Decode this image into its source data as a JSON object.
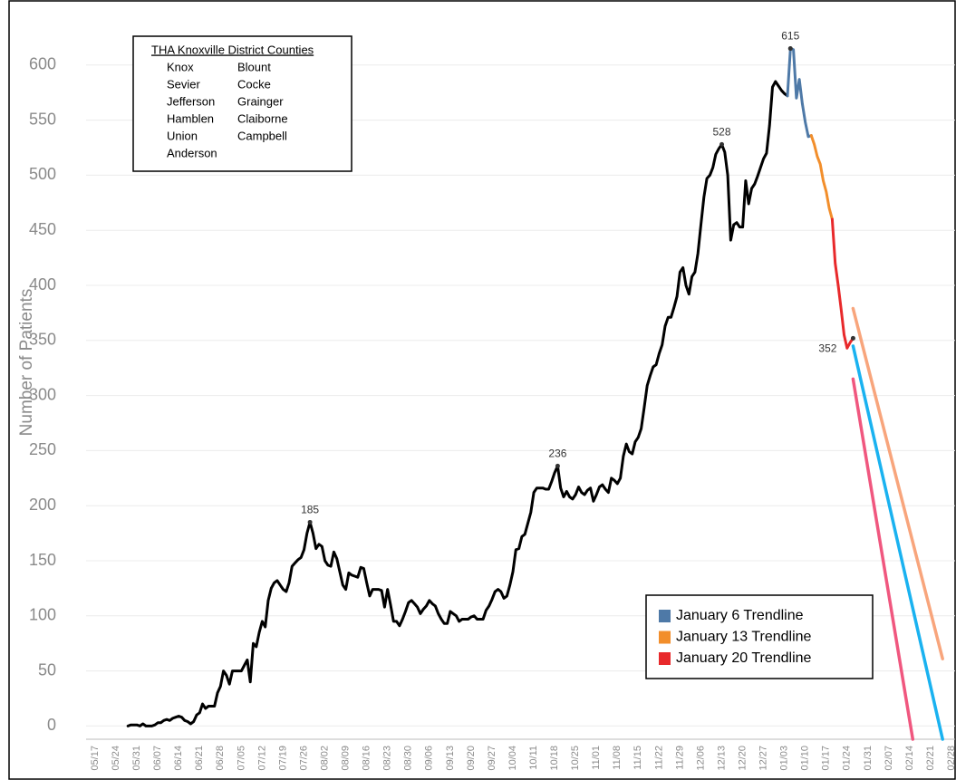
{
  "chart_data": {
    "type": "line",
    "y_label": "Number of Patients",
    "categories": [
      "05/17",
      "05/18",
      "05/19",
      "05/20",
      "05/21",
      "05/22",
      "05/23",
      "05/24",
      "05/25",
      "05/26",
      "05/27",
      "05/28",
      "05/29",
      "05/30",
      "05/31",
      "06/01",
      "06/02",
      "06/03",
      "06/04",
      "06/05",
      "06/06",
      "06/07",
      "06/08",
      "06/09",
      "06/10",
      "06/11",
      "06/12",
      "06/13",
      "06/14",
      "06/15",
      "06/16",
      "06/17",
      "06/18",
      "06/19",
      "06/20",
      "06/21",
      "06/22",
      "06/23",
      "06/24",
      "06/25",
      "06/26",
      "06/27",
      "06/28",
      "06/29",
      "06/30",
      "07/01",
      "07/02",
      "07/03",
      "07/04",
      "07/05",
      "07/06",
      "07/07",
      "07/08",
      "07/09",
      "07/10",
      "07/11",
      "07/12",
      "07/13",
      "07/14",
      "07/15",
      "07/16",
      "07/17",
      "07/18",
      "07/19",
      "07/20",
      "07/21",
      "07/22",
      "07/23",
      "07/24",
      "07/25",
      "07/26",
      "07/27",
      "07/28",
      "07/29",
      "07/30",
      "07/31",
      "08/01",
      "08/02",
      "08/03",
      "08/04",
      "08/05",
      "08/06",
      "08/07",
      "08/08",
      "08/09",
      "08/10",
      "08/11",
      "08/12",
      "08/13",
      "08/14",
      "08/15",
      "08/16",
      "08/17",
      "08/18",
      "08/19",
      "08/20",
      "08/21",
      "08/22",
      "08/23",
      "08/24",
      "08/25",
      "08/26",
      "08/27",
      "08/28",
      "08/29",
      "08/30",
      "08/31",
      "09/01",
      "09/02",
      "09/03",
      "09/04",
      "09/05",
      "09/06",
      "09/07",
      "09/08",
      "09/09",
      "09/10",
      "09/11",
      "09/12",
      "09/13",
      "09/14",
      "09/15",
      "09/16",
      "09/17",
      "09/18",
      "09/19",
      "09/20",
      "09/21",
      "09/22",
      "09/23",
      "09/24",
      "09/25",
      "09/26",
      "09/27",
      "09/28",
      "09/29",
      "09/30",
      "10/01",
      "10/02",
      "10/03",
      "10/04",
      "10/05",
      "10/06",
      "10/07",
      "10/08",
      "10/09",
      "10/10",
      "10/11",
      "10/12",
      "10/13",
      "10/14",
      "10/15",
      "10/16",
      "10/17",
      "10/18",
      "10/19",
      "10/20",
      "10/21",
      "10/22",
      "10/23",
      "10/24",
      "10/25",
      "10/26",
      "10/27",
      "10/28",
      "10/29",
      "10/30",
      "10/31",
      "11/01",
      "11/02",
      "11/03",
      "11/04",
      "11/05",
      "11/06",
      "11/07",
      "11/08",
      "11/09",
      "11/10",
      "11/11",
      "11/12",
      "11/13",
      "11/14",
      "11/15",
      "11/16",
      "11/17",
      "11/18",
      "11/19",
      "11/20",
      "11/21",
      "11/22",
      "11/23",
      "11/24",
      "11/25",
      "11/26",
      "11/27",
      "11/28",
      "11/29",
      "11/30",
      "12/01",
      "12/02",
      "12/03",
      "12/04",
      "12/05",
      "12/06",
      "12/07",
      "12/08",
      "12/09",
      "12/10",
      "12/11",
      "12/12",
      "12/13",
      "12/14",
      "12/15",
      "12/16",
      "12/17",
      "12/18",
      "12/19",
      "12/20",
      "12/21",
      "12/22",
      "12/23",
      "12/24",
      "12/25",
      "12/26",
      "12/27",
      "12/28",
      "12/29",
      "12/30",
      "12/31",
      "01/01",
      "01/02",
      "01/03",
      "01/04",
      "01/05",
      "01/06",
      "01/07",
      "01/08",
      "01/09",
      "01/10",
      "01/11",
      "01/12",
      "01/13",
      "01/14",
      "01/15",
      "01/16",
      "01/17",
      "01/18",
      "01/19",
      "01/20",
      "01/21",
      "01/22",
      "01/23",
      "01/24",
      "01/25",
      "01/26",
      "01/27",
      "01/28",
      "01/29",
      "01/30",
      "01/31",
      "02/01",
      "02/02",
      "02/03",
      "02/04",
      "02/05",
      "02/06",
      "02/07",
      "02/08",
      "02/09",
      "02/10",
      "02/11",
      "02/12",
      "02/13",
      "02/14",
      "02/15",
      "02/16",
      "02/17",
      "02/18",
      "02/19",
      "02/20",
      "02/21",
      "02/22",
      "02/23",
      "02/24",
      "02/25",
      "02/26",
      "02/27",
      "02/28"
    ],
    "xticks": [
      "05/17",
      "05/24",
      "05/31",
      "06/07",
      "06/14",
      "06/21",
      "06/28",
      "07/05",
      "07/12",
      "07/19",
      "07/26",
      "08/02",
      "08/09",
      "08/16",
      "08/23",
      "08/30",
      "09/06",
      "09/13",
      "09/20",
      "09/27",
      "10/04",
      "10/11",
      "10/18",
      "10/25",
      "11/01",
      "11/08",
      "11/15",
      "11/22",
      "11/29",
      "12/06",
      "12/13",
      "12/20",
      "12/27",
      "01/03",
      "01/10",
      "01/17",
      "01/24",
      "01/31",
      "02/07",
      "02/14",
      "02/21",
      "02/28"
    ],
    "ylim": [
      -12,
      650
    ],
    "yticks": [
      0,
      50,
      100,
      150,
      200,
      250,
      300,
      350,
      400,
      450,
      500,
      550,
      600
    ],
    "grid": true,
    "legend": "lower right",
    "series": [
      {
        "color": "#000000",
        "values": [
          null,
          null,
          null,
          null,
          null,
          null,
          null,
          null,
          null,
          null,
          null,
          0,
          1,
          1,
          1,
          0,
          2,
          0,
          0,
          0,
          1,
          3,
          3,
          5,
          6,
          5,
          7,
          8,
          9,
          8,
          5,
          4,
          2,
          4,
          10,
          12,
          20,
          16,
          18,
          18,
          18,
          30,
          36,
          50,
          46,
          38,
          50,
          50,
          50,
          50,
          55,
          60,
          40,
          75,
          72,
          85,
          95,
          90,
          114,
          125,
          130,
          132,
          128,
          124,
          122,
          130,
          145,
          148,
          151,
          153,
          160,
          175,
          185,
          175,
          161,
          165,
          163,
          150,
          146,
          145,
          158,
          152,
          140,
          128,
          124,
          139,
          137,
          136,
          135,
          144,
          143,
          130,
          118,
          124,
          124,
          124,
          123,
          108,
          124,
          110,
          95,
          95,
          91,
          97,
          104,
          112,
          114,
          111,
          108,
          102,
          106,
          109,
          114,
          111,
          109,
          102,
          97,
          93,
          93,
          104,
          102,
          100,
          95,
          97,
          97,
          97,
          99,
          100,
          97,
          97,
          97,
          105,
          109,
          115,
          122,
          124,
          122,
          116,
          118,
          128,
          140,
          160,
          161,
          172,
          174,
          184,
          194,
          212,
          216,
          216,
          216,
          215,
          215,
          222,
          230,
          236,
          216,
          208,
          213,
          208,
          206,
          210,
          217,
          212,
          210,
          214,
          216,
          204,
          210,
          217,
          219,
          215,
          212,
          225,
          223,
          220,
          225,
          245,
          256,
          249,
          247,
          258,
          262,
          270,
          289,
          309,
          318,
          326,
          328,
          338,
          346,
          363,
          371,
          371,
          380,
          390,
          412,
          416,
          400,
          392,
          408,
          412,
          429,
          455,
          480,
          497,
          500,
          507,
          519,
          524,
          528,
          521,
          500,
          441,
          455,
          457,
          453,
          453,
          495,
          474,
          488,
          492,
          499,
          507,
          515,
          520,
          545,
          580,
          585,
          581,
          577,
          574,
          572,
          null,
          null,
          null,
          null,
          null,
          null,
          null,
          null,
          null,
          null,
          null,
          null,
          null,
          null,
          null,
          null,
          null,
          null,
          null,
          null,
          null,
          null,
          null,
          null,
          null,
          null,
          null,
          null,
          null,
          null,
          null,
          null,
          null,
          null,
          null,
          null,
          null,
          null,
          null,
          null,
          null,
          null,
          null,
          null,
          null,
          null,
          null,
          null,
          null,
          null,
          null,
          null,
          null,
          null,
          null
        ]
      },
      {
        "name": "January 6 Trendline",
        "color": "#4e79a7",
        "x": [
          "01/04",
          "01/05",
          "01/06",
          "01/07",
          "01/08",
          "01/09",
          "01/10",
          "01/11",
          "01/12"
        ],
        "values": [
          572,
          615,
          614,
          570,
          587,
          565,
          548,
          535,
          536
        ]
      },
      {
        "name": "January 13 Trendline",
        "color": "#f28e2b",
        "x": [
          "01/12",
          "01/13",
          "01/14",
          "01/15",
          "01/16",
          "01/17",
          "01/18",
          "01/19"
        ],
        "values": [
          536,
          528,
          517,
          510,
          495,
          485,
          470,
          460
        ]
      },
      {
        "name": "January 20 Trendline",
        "color": "#e8292b",
        "x": [
          "01/19",
          "01/20",
          "01/21",
          "01/22",
          "01/23",
          "01/24",
          "01/25",
          "01/26"
        ],
        "values": [
          460,
          420,
          400,
          378,
          355,
          343,
          348,
          352
        ]
      }
    ],
    "trendlines": [
      {
        "color": "#1ab2f0",
        "x": [
          "01/26",
          "02/25"
        ],
        "values": [
          345,
          -12
        ]
      },
      {
        "color": "#f8a57c",
        "x": [
          "01/26",
          "02/25"
        ],
        "values": [
          379,
          61
        ]
      },
      {
        "color": "#f0577f",
        "x": [
          "01/26",
          "02/15"
        ],
        "values": [
          315,
          -12
        ]
      }
    ],
    "annotations": [
      {
        "x": "07/28",
        "value": 185
      },
      {
        "x": "10/19",
        "value": 236
      },
      {
        "x": "12/13",
        "value": 528
      },
      {
        "x": "01/05",
        "value": 615
      },
      {
        "x": "01/26",
        "value": 352
      }
    ],
    "note_box": {
      "title": "THA Knoxville District Counties",
      "columns": [
        [
          "Knox",
          "Sevier",
          "Jefferson",
          "Hamblen",
          "Union",
          "Anderson"
        ],
        [
          "Blount",
          "Cocke",
          "Grainger",
          "Claiborne",
          "Campbell"
        ]
      ]
    }
  }
}
